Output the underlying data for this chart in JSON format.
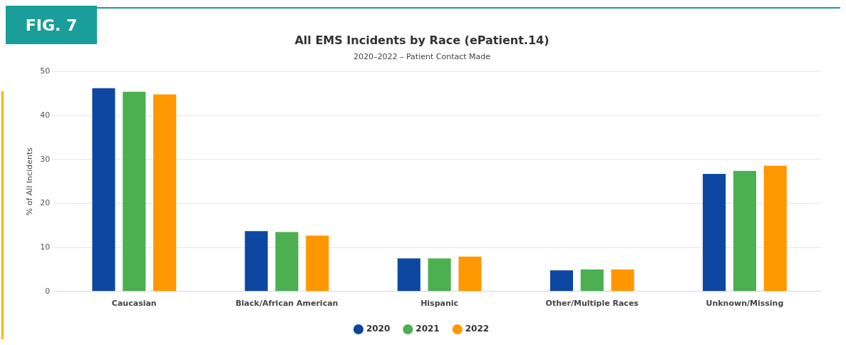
{
  "chart_data": {
    "type": "bar",
    "title": "All EMS Incidents by Race (ePatient.14)",
    "subtitle": "2020–2022 – Patient Contact Made",
    "ylabel": "% of All Incidents",
    "annotations": [
      "FIG. 7"
    ],
    "categories": [
      "Caucasian",
      "Black/African American",
      "Hispanic",
      "Other/Multiple Races",
      "Unknown/Missing"
    ],
    "series": [
      {
        "name": "2020",
        "color": "#0d47a1",
        "values": [
          46.2,
          13.7,
          7.5,
          4.8,
          26.7
        ]
      },
      {
        "name": "2021",
        "color": "#4caf50",
        "values": [
          45.4,
          13.5,
          7.5,
          5.0,
          27.4
        ]
      },
      {
        "name": "2022",
        "color": "#ff9800",
        "values": [
          44.8,
          12.7,
          7.9,
          5.0,
          28.6
        ]
      }
    ],
    "ylim": [
      0,
      50
    ],
    "yticks": [
      0,
      10,
      20,
      30,
      40,
      50
    ],
    "grid": "y",
    "legend": "bottom"
  }
}
